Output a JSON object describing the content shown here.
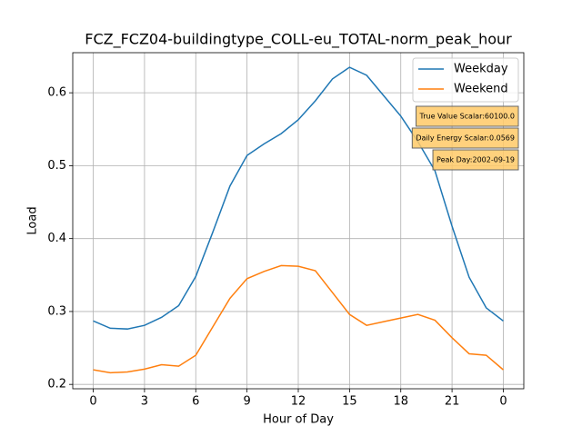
{
  "chart_data": {
    "type": "line",
    "title": "FCZ_FCZ04-buildingtype_COLL-eu_TOTAL-norm_peak_hour",
    "xlabel": "Hour of Day",
    "ylabel": "Load",
    "x": [
      0,
      1,
      2,
      3,
      4,
      5,
      6,
      7,
      8,
      9,
      10,
      11,
      12,
      13,
      14,
      15,
      16,
      17,
      18,
      19,
      20,
      21,
      22,
      23,
      24
    ],
    "series": [
      {
        "name": "Weekday",
        "color": "#1f77b4",
        "values": [
          0.287,
          0.277,
          0.276,
          0.281,
          0.292,
          0.308,
          0.348,
          0.409,
          0.472,
          0.514,
          0.53,
          0.544,
          0.563,
          0.589,
          0.619,
          0.635,
          0.624,
          0.596,
          0.568,
          0.533,
          0.493,
          0.417,
          0.347,
          0.305,
          0.287
        ]
      },
      {
        "name": "Weekend",
        "color": "#ff7f0e",
        "values": [
          0.22,
          0.216,
          0.217,
          0.221,
          0.227,
          0.225,
          0.24,
          0.279,
          0.318,
          0.345,
          0.355,
          0.363,
          0.362,
          0.356,
          0.326,
          0.296,
          0.281,
          0.286,
          0.291,
          0.296,
          0.288,
          0.264,
          0.242,
          0.24,
          0.22
        ]
      }
    ],
    "xlim": [
      -1.2,
      25.2
    ],
    "xticks": [
      0,
      3,
      6,
      9,
      12,
      15,
      18,
      21,
      {
        "value": 24,
        "label": "0"
      }
    ],
    "ylim": [
      0.194,
      0.655
    ],
    "yticks": [
      {
        "value": 0.2,
        "label": "0.2"
      },
      {
        "value": 0.3,
        "label": "0.3"
      },
      {
        "value": 0.4,
        "label": "0.4"
      },
      {
        "value": 0.5,
        "label": "0.5"
      },
      {
        "value": 0.6,
        "label": "0.6"
      }
    ],
    "grid": true,
    "legend": "upper right",
    "annotations": [
      "True Value Scalar:60100.0",
      "Daily Energy Scalar:0.0569",
      "Peak Day:2002-09-19"
    ]
  }
}
